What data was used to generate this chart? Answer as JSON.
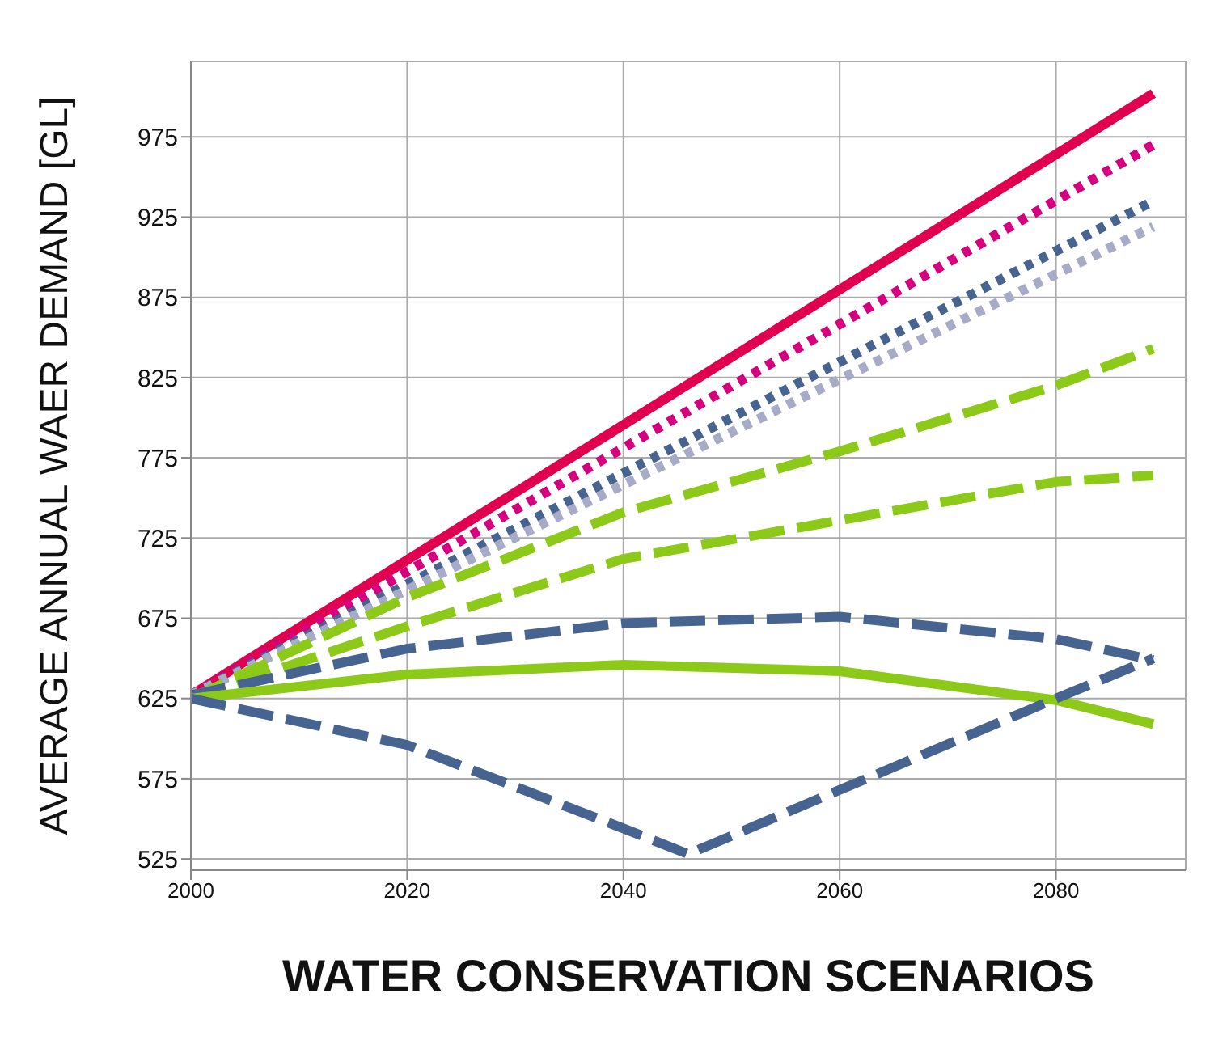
{
  "chart_data": {
    "type": "line",
    "xlabel": "WATER CONSERVATION SCENARIOS",
    "ylabel": "AVERAGE ANNUAL WAER DEMAND [GL]",
    "xlim": [
      2000,
      2092
    ],
    "ylim": [
      518,
      1022
    ],
    "xticks": [
      2000,
      2020,
      2040,
      2060,
      2080
    ],
    "yticks": [
      525,
      575,
      625,
      675,
      725,
      775,
      825,
      875,
      925,
      975
    ],
    "grid": true,
    "legend": false,
    "marker": "none",
    "series": [
      {
        "color": "#e0004f",
        "line_style": "solid",
        "x": [
          2000,
          2089
        ],
        "values": [
          627,
          1002
        ]
      },
      {
        "color": "#d6007e",
        "line_style": "dotted",
        "x": [
          2000,
          2089
        ],
        "values": [
          627,
          970
        ]
      },
      {
        "color": "#46648f",
        "line_style": "dotted",
        "x": [
          2000,
          2089
        ],
        "values": [
          627,
          935
        ]
      },
      {
        "color": "#a8abc7",
        "line_style": "dotted",
        "x": [
          2000,
          2089
        ],
        "values": [
          627,
          919
        ]
      },
      {
        "color": "#8cc919",
        "line_style": "dashed",
        "x": [
          2000,
          2020,
          2040,
          2060,
          2080,
          2089
        ],
        "values": [
          625,
          688,
          741,
          779,
          820,
          843
        ]
      },
      {
        "color": "#8cc919",
        "line_style": "dashed",
        "x": [
          2000,
          2020,
          2040,
          2060,
          2080,
          2089
        ],
        "values": [
          625,
          670,
          712,
          736,
          760,
          764
        ]
      },
      {
        "color": "#46648f",
        "line_style": "dashed",
        "x": [
          2000,
          2020,
          2040,
          2060,
          2080,
          2089
        ],
        "values": [
          627,
          656,
          672,
          676,
          662,
          649
        ]
      },
      {
        "color": "#8cc919",
        "line_style": "solid",
        "x": [
          2000,
          2020,
          2040,
          2060,
          2080,
          2089
        ],
        "values": [
          625,
          640,
          646,
          642,
          624,
          609
        ]
      },
      {
        "color": "#46648f",
        "line_style": "dashed",
        "x": [
          2000,
          2020,
          2040,
          2046,
          2060,
          2080,
          2089
        ],
        "values": [
          625,
          596,
          544,
          528,
          568,
          625,
          650
        ]
      }
    ]
  }
}
